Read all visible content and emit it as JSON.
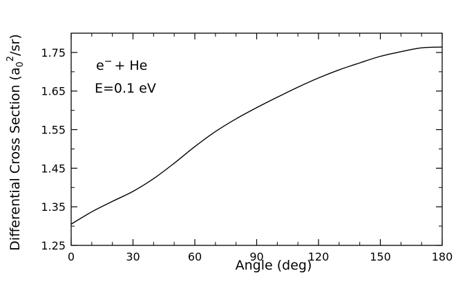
{
  "chart_data": {
    "type": "line",
    "xlabel": "Angle (deg)",
    "ylabel_parts": [
      "Differential Cross Section (a",
      "0",
      "2",
      "/sr)"
    ],
    "annotations": {
      "line1_main": "e",
      "line1_sup": "−",
      "line1_rest": "+ He",
      "line2": "E=0.1 eV"
    },
    "xlim": [
      0,
      180
    ],
    "ylim": [
      1.25,
      1.8
    ],
    "x_ticks": [
      "0",
      "30",
      "60",
      "90",
      "120",
      "150",
      "180"
    ],
    "y_ticks": [
      "1.25",
      "1.35",
      "1.45",
      "1.55",
      "1.65",
      "1.75"
    ],
    "grid": false,
    "series": [
      {
        "x": [
          0,
          10,
          20,
          30,
          40,
          50,
          60,
          70,
          80,
          90,
          100,
          110,
          120,
          130,
          140,
          150,
          160,
          170,
          180
        ],
        "y": [
          1.305,
          1.337,
          1.364,
          1.39,
          1.423,
          1.463,
          1.506,
          1.545,
          1.578,
          1.607,
          1.634,
          1.66,
          1.684,
          1.705,
          1.723,
          1.74,
          1.752,
          1.762,
          1.764
        ]
      }
    ]
  }
}
